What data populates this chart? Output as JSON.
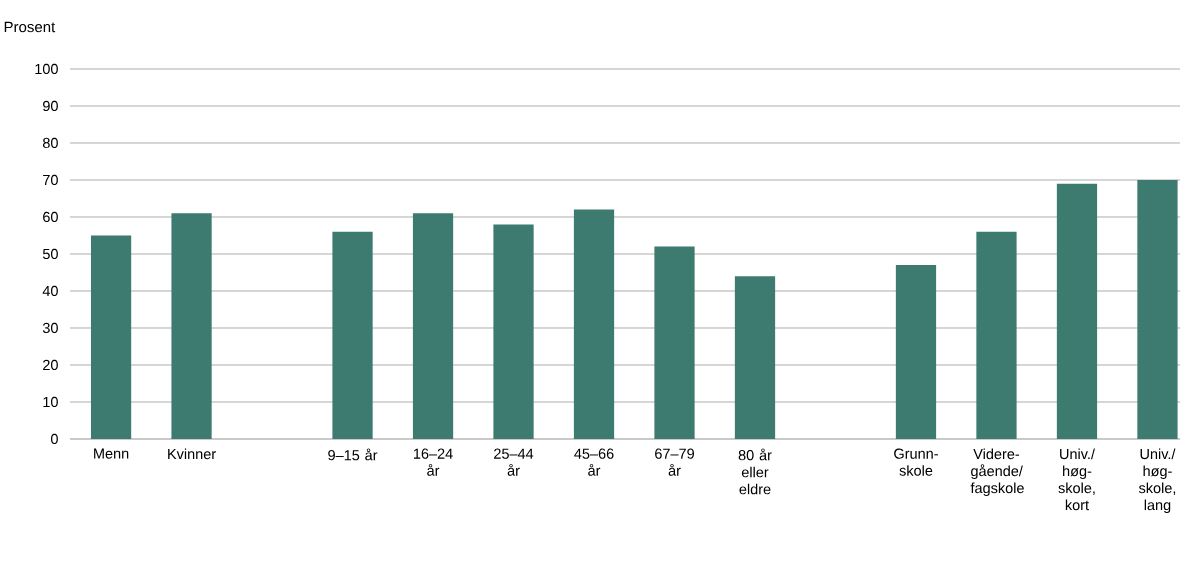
{
  "chart_data": {
    "type": "bar",
    "ylabel": "Prosent",
    "color": "#3d7b70",
    "categories": [
      "Menn",
      "Kvinner",
      null,
      "9–15 år",
      "16–24 år",
      "25–44 år",
      "45–66 år",
      "67–79 år",
      "80 år eller eldre",
      null,
      "Grunn-skole",
      "Videre-gående/fagskole",
      "Univ./høg-skole, kort",
      "Univ./høg-skole, lang"
    ],
    "values": [
      55,
      61,
      null,
      56,
      61,
      58,
      62,
      52,
      44,
      null,
      47,
      56,
      69,
      70
    ],
    "ylim": [
      0,
      100
    ],
    "yticks": [
      0,
      10,
      20,
      30,
      40,
      50,
      60,
      70,
      80,
      90,
      100
    ],
    "grid": "y"
  }
}
